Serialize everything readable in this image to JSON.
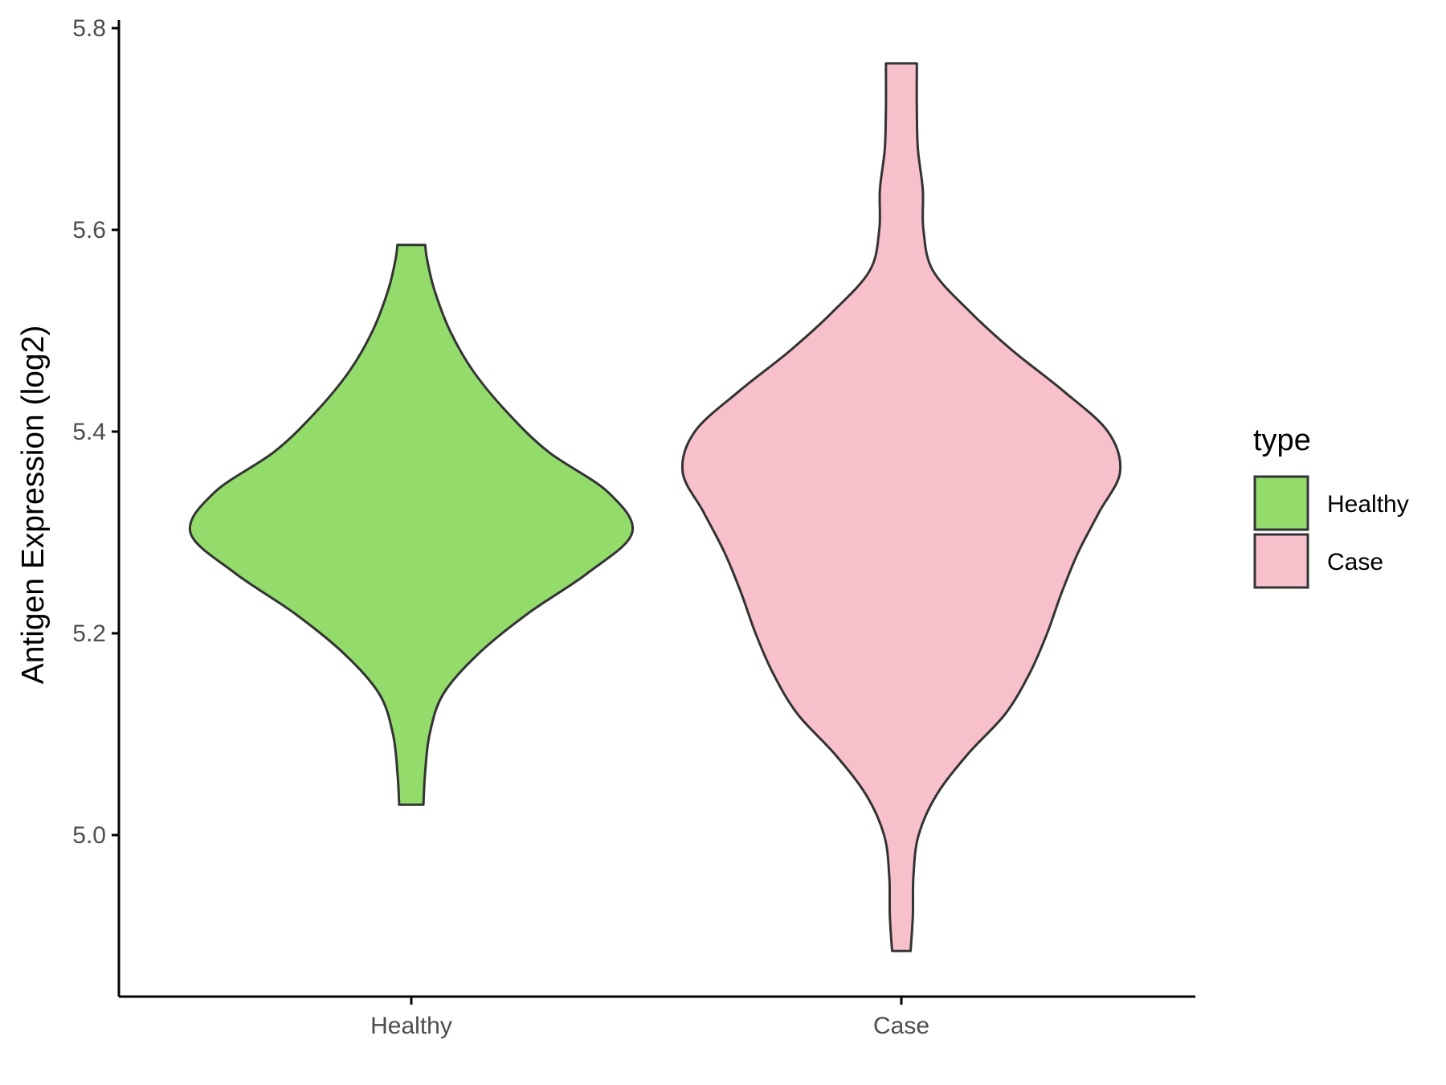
{
  "chart_data": {
    "type": "violin",
    "title": "",
    "xlabel": "",
    "ylabel": "Antigen Expression (log2)",
    "categories": [
      "Healthy",
      "Case"
    ],
    "ylim": [
      4.84,
      5.81
    ],
    "yticks": [
      5.0,
      5.2,
      5.4,
      5.6,
      5.8
    ],
    "ytick_labels": [
      "5.0",
      "5.2",
      "5.4",
      "5.6",
      "5.8"
    ],
    "grid": false,
    "legend": {
      "title": "type",
      "placement": "right",
      "entries": [
        {
          "label": "Healthy",
          "color": "#93DC6B"
        },
        {
          "label": "Case",
          "color": "#F8C0CB"
        }
      ]
    },
    "series": [
      {
        "category": "Healthy",
        "color": "#93DC6B",
        "min": 5.03,
        "max": 5.585,
        "density": [
          [
            5.03,
            0.055
          ],
          [
            5.06,
            0.062
          ],
          [
            5.1,
            0.083
          ],
          [
            5.14,
            0.145
          ],
          [
            5.18,
            0.305
          ],
          [
            5.22,
            0.53
          ],
          [
            5.26,
            0.8
          ],
          [
            5.3,
            1.0
          ],
          [
            5.34,
            0.89
          ],
          [
            5.38,
            0.62
          ],
          [
            5.42,
            0.43
          ],
          [
            5.46,
            0.28
          ],
          [
            5.5,
            0.175
          ],
          [
            5.54,
            0.105
          ],
          [
            5.57,
            0.072
          ],
          [
            5.585,
            0.063
          ]
        ]
      },
      {
        "category": "Case",
        "color": "#F8C0CB",
        "min": 4.885,
        "max": 5.765,
        "density": [
          [
            4.885,
            0.042
          ],
          [
            4.92,
            0.052
          ],
          [
            4.96,
            0.055
          ],
          [
            5.0,
            0.078
          ],
          [
            5.04,
            0.16
          ],
          [
            5.08,
            0.3
          ],
          [
            5.12,
            0.47
          ],
          [
            5.16,
            0.58
          ],
          [
            5.2,
            0.66
          ],
          [
            5.24,
            0.725
          ],
          [
            5.28,
            0.8
          ],
          [
            5.32,
            0.895
          ],
          [
            5.36,
            0.99
          ],
          [
            5.4,
            0.935
          ],
          [
            5.44,
            0.735
          ],
          [
            5.48,
            0.505
          ],
          [
            5.52,
            0.305
          ],
          [
            5.56,
            0.142
          ],
          [
            5.6,
            0.1
          ],
          [
            5.64,
            0.097
          ],
          [
            5.68,
            0.075
          ],
          [
            5.72,
            0.07
          ],
          [
            5.765,
            0.07
          ]
        ]
      }
    ]
  }
}
